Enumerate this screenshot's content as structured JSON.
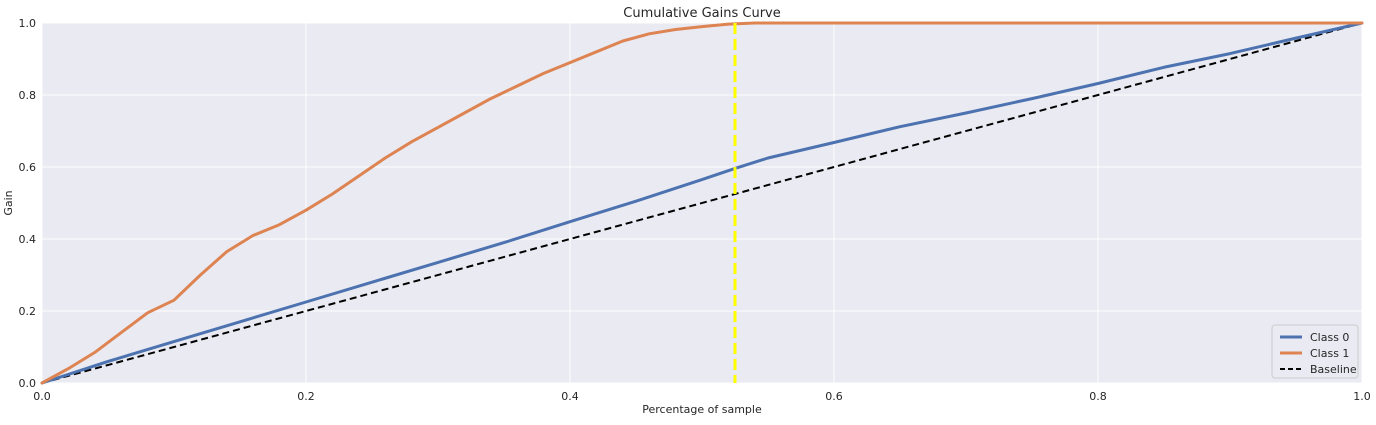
{
  "chart_data": {
    "type": "line",
    "title": "Cumulative Gains Curve",
    "xlabel": "Percentage of sample",
    "ylabel": "Gain",
    "xlim": [
      0.0,
      1.0
    ],
    "ylim": [
      0.0,
      1.0
    ],
    "x_ticks": [
      "0.0",
      "0.2",
      "0.4",
      "0.6",
      "0.8",
      "1.0"
    ],
    "y_ticks": [
      "0.0",
      "0.2",
      "0.4",
      "0.6",
      "0.8",
      "1.0"
    ],
    "grid": true,
    "legend_position": "bottom-right",
    "colors": {
      "plot_background": "#eaeaf2",
      "grid": "#ffffff",
      "class0": "#4c72b0",
      "class1": "#dd8452",
      "baseline": "#000000",
      "marker_line": "#ffff00"
    },
    "series": [
      {
        "name": "Class 0",
        "style": "solid",
        "x": [
          0.0,
          0.05,
          0.1,
          0.15,
          0.2,
          0.25,
          0.3,
          0.35,
          0.4,
          0.45,
          0.5,
          0.525,
          0.55,
          0.6,
          0.65,
          0.7,
          0.75,
          0.8,
          0.85,
          0.9,
          0.95,
          1.0
        ],
        "y": [
          0.0,
          0.06,
          0.115,
          0.17,
          0.225,
          0.28,
          0.335,
          0.39,
          0.448,
          0.505,
          0.565,
          0.596,
          0.625,
          0.668,
          0.712,
          0.75,
          0.79,
          0.832,
          0.877,
          0.915,
          0.958,
          1.0
        ]
      },
      {
        "name": "Class 1",
        "style": "solid",
        "x": [
          0.0,
          0.02,
          0.04,
          0.06,
          0.08,
          0.1,
          0.12,
          0.14,
          0.16,
          0.18,
          0.2,
          0.22,
          0.24,
          0.26,
          0.28,
          0.3,
          0.32,
          0.34,
          0.36,
          0.38,
          0.4,
          0.42,
          0.44,
          0.46,
          0.48,
          0.5,
          0.52,
          0.54,
          0.56,
          0.6,
          0.7,
          0.8,
          0.9,
          1.0
        ],
        "y": [
          0.0,
          0.04,
          0.085,
          0.14,
          0.195,
          0.23,
          0.3,
          0.365,
          0.41,
          0.44,
          0.48,
          0.525,
          0.575,
          0.625,
          0.67,
          0.71,
          0.75,
          0.79,
          0.825,
          0.86,
          0.89,
          0.92,
          0.95,
          0.97,
          0.982,
          0.99,
          0.997,
          1.0,
          1.0,
          1.0,
          1.0,
          1.0,
          1.0,
          1.0
        ]
      },
      {
        "name": "Baseline",
        "style": "dashed",
        "x": [
          0.0,
          1.0
        ],
        "y": [
          0.0,
          1.0
        ]
      }
    ],
    "vertical_line": {
      "x": 0.525,
      "color": "#ffff00",
      "style": "dashed"
    }
  }
}
